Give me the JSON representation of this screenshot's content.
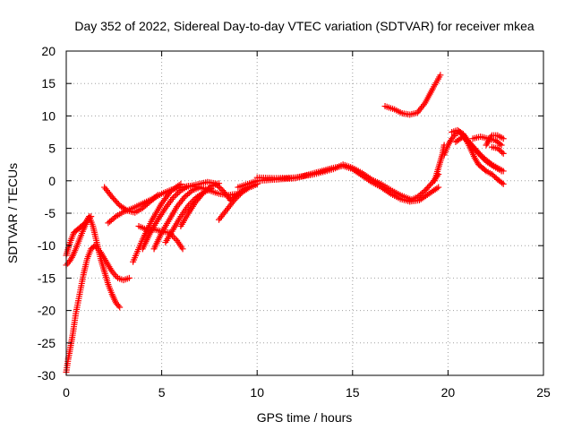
{
  "chart_data": {
    "type": "scatter",
    "title": "Day 352 of 2022, Sidereal Day-to-day VTEC variation (SDTVAR) for receiver mkea",
    "xlabel": "GPS time / hours",
    "ylabel": "SDTVAR / TECUs",
    "xlim": [
      0,
      25
    ],
    "ylim": [
      -30,
      20
    ],
    "xticks": [
      0,
      5,
      10,
      15,
      20,
      25
    ],
    "yticks": [
      -30,
      -25,
      -20,
      -15,
      -10,
      -5,
      0,
      5,
      10,
      15,
      20
    ],
    "grid": true,
    "marker": "plus",
    "color": "#ff0000",
    "series": [
      {
        "name": "s1",
        "x": [
          0.0,
          0.2,
          0.4,
          0.6,
          0.8,
          1.0,
          1.2,
          1.4,
          1.6,
          1.8,
          2.0,
          2.2,
          2.4,
          2.6,
          2.8
        ],
        "y": [
          -11.5,
          -9.5,
          -8.0,
          -7.5,
          -7.0,
          -6.5,
          -5.5,
          -7.0,
          -9.5,
          -12.0,
          -14.0,
          -16.0,
          -17.5,
          -18.8,
          -19.5
        ]
      },
      {
        "name": "s2",
        "x": [
          0.0,
          0.15,
          0.3,
          0.5,
          0.7,
          0.9,
          1.1,
          1.3
        ],
        "y": [
          -13.0,
          -12.5,
          -11.8,
          -10.5,
          -9.0,
          -7.5,
          -6.2,
          -5.5
        ]
      },
      {
        "name": "s3",
        "x": [
          0.0,
          0.1,
          0.2,
          0.35,
          0.5,
          0.7,
          0.9,
          1.1,
          1.3,
          1.5,
          1.8,
          2.1,
          2.4,
          2.7,
          3.0,
          3.3
        ],
        "y": [
          -29.5,
          -27.5,
          -26.0,
          -23.5,
          -20.5,
          -17.5,
          -14.5,
          -12.0,
          -10.5,
          -10.0,
          -11.0,
          -12.5,
          -14.0,
          -15.0,
          -15.3,
          -15.0
        ]
      },
      {
        "name": "s4",
        "x": [
          2.0,
          2.4,
          2.8,
          3.2,
          3.6,
          4.0,
          4.4,
          4.8
        ],
        "y": [
          -1.0,
          -2.5,
          -3.8,
          -4.6,
          -4.9,
          -4.2,
          -3.2,
          -2.2
        ]
      },
      {
        "name": "s5",
        "x": [
          2.2,
          2.6,
          3.0,
          3.5,
          4.0,
          4.5,
          5.0,
          5.5,
          6.0,
          6.5,
          7.0,
          7.5,
          8.0,
          8.5,
          9.0
        ],
        "y": [
          -6.5,
          -5.5,
          -4.8,
          -4.2,
          -3.5,
          -2.8,
          -2.0,
          -1.4,
          -1.0,
          -0.8,
          -1.0,
          -1.5,
          -2.0,
          -2.2,
          -2.0
        ]
      },
      {
        "name": "s6",
        "x": [
          3.5,
          4.0,
          4.5,
          5.0,
          5.5,
          6.0
        ],
        "y": [
          -12.5,
          -9.0,
          -6.0,
          -3.5,
          -1.5,
          -0.5
        ]
      },
      {
        "name": "s7",
        "x": [
          4.0,
          4.4,
          4.8,
          5.2,
          5.6,
          6.0,
          6.4
        ],
        "y": [
          -10.5,
          -8.0,
          -6.0,
          -4.2,
          -2.6,
          -1.5,
          -0.8
        ]
      },
      {
        "name": "s8",
        "x": [
          3.8,
          4.2,
          4.6,
          5.0,
          5.4,
          5.8,
          6.1
        ],
        "y": [
          -7.0,
          -7.5,
          -7.5,
          -7.8,
          -8.0,
          -9.2,
          -10.5
        ]
      },
      {
        "name": "s9",
        "x": [
          4.6,
          5.0,
          5.4,
          5.8,
          6.2,
          6.6,
          7.0
        ],
        "y": [
          -10.5,
          -8.0,
          -6.0,
          -4.0,
          -2.5,
          -1.5,
          -1.0
        ]
      },
      {
        "name": "s10",
        "x": [
          5.2,
          5.6,
          6.0,
          6.4,
          6.8,
          7.2,
          7.6
        ],
        "y": [
          -9.5,
          -7.5,
          -5.5,
          -3.8,
          -2.6,
          -1.8,
          -1.2
        ]
      },
      {
        "name": "s11",
        "x": [
          6.0,
          6.4,
          6.8,
          7.2,
          7.6,
          8.0
        ],
        "y": [
          -7.0,
          -5.0,
          -3.2,
          -1.8,
          -0.8,
          -0.4
        ]
      },
      {
        "name": "s12",
        "x": [
          8.0,
          8.4,
          8.8,
          9.2,
          9.6,
          10.0
        ],
        "y": [
          -6.0,
          -4.5,
          -3.0,
          -1.8,
          -1.0,
          -0.5
        ]
      },
      {
        "name": "s13",
        "x": [
          6.2,
          6.8,
          7.4,
          7.8,
          8.2,
          8.6
        ],
        "y": [
          -1.0,
          -0.6,
          -0.2,
          -0.4,
          -1.5,
          -3.0
        ]
      },
      {
        "name": "s14",
        "x": [
          8.6,
          9.0,
          9.4,
          9.8,
          10.0
        ],
        "y": [
          -3.0,
          -2.0,
          -1.2,
          -0.8,
          -0.5
        ]
      },
      {
        "name": "s15",
        "x": [
          9.0,
          9.5,
          10.0,
          10.5,
          11.0,
          11.5,
          12.0,
          12.5,
          13.0,
          13.5,
          14.0,
          14.5,
          15.0,
          15.5,
          16.0,
          16.5,
          17.0,
          17.5,
          18.0,
          18.5,
          19.0,
          19.5
        ],
        "y": [
          -1.0,
          -0.5,
          0.0,
          0.1,
          0.2,
          0.3,
          0.4,
          0.8,
          1.2,
          1.6,
          2.0,
          2.3,
          1.8,
          0.8,
          -0.2,
          -1.0,
          -2.0,
          -2.8,
          -3.2,
          -3.0,
          -2.0,
          -1.0
        ]
      },
      {
        "name": "s16",
        "x": [
          10.0,
          11.0,
          12.0,
          13.0,
          14.0,
          14.5,
          15.0,
          15.5,
          16.0,
          16.5,
          17.0,
          17.5,
          18.0
        ],
        "y": [
          0.5,
          0.4,
          0.5,
          1.0,
          1.8,
          2.5,
          2.0,
          1.2,
          0.2,
          -0.5,
          -1.4,
          -2.2,
          -2.8
        ]
      },
      {
        "name": "s17",
        "x": [
          18.0,
          18.4,
          18.8,
          19.2,
          19.5
        ],
        "y": [
          -3.0,
          -2.5,
          -1.5,
          -0.2,
          1.0
        ]
      },
      {
        "name": "s18",
        "x": [
          19.3,
          19.5,
          19.7,
          19.8
        ],
        "y": [
          0.0,
          2.0,
          4.0,
          5.5
        ]
      },
      {
        "name": "s19",
        "x": [
          16.7,
          17.2,
          17.6,
          18.0,
          18.4,
          18.8,
          19.2,
          19.6
        ],
        "y": [
          11.5,
          11.0,
          10.4,
          10.2,
          10.5,
          12.0,
          14.2,
          16.3
        ]
      },
      {
        "name": "s20",
        "x": [
          19.8,
          20.0,
          20.2,
          20.4,
          20.6,
          20.8,
          21.0,
          21.2,
          21.4,
          21.6,
          21.8,
          22.0,
          22.3,
          22.6,
          22.9
        ],
        "y": [
          4.0,
          5.5,
          6.5,
          7.2,
          7.5,
          7.0,
          6.0,
          4.8,
          3.5,
          2.5,
          2.0,
          1.5,
          1.0,
          0.2,
          -0.5
        ]
      },
      {
        "name": "s21",
        "x": [
          20.2,
          20.5,
          20.8,
          21.1,
          21.4,
          21.7,
          22.0,
          22.3,
          22.6,
          22.9
        ],
        "y": [
          7.5,
          7.8,
          7.2,
          6.0,
          5.0,
          4.0,
          3.2,
          2.5,
          2.0,
          1.5
        ]
      },
      {
        "name": "s22",
        "x": [
          20.4,
          20.8,
          21.2,
          21.6,
          22.0,
          22.4,
          22.8
        ],
        "y": [
          6.0,
          6.8,
          5.5,
          4.2,
          3.0,
          2.2,
          1.5
        ]
      },
      {
        "name": "s23",
        "x": [
          21.3,
          21.7,
          22.1,
          22.5,
          22.8
        ],
        "y": [
          6.5,
          6.8,
          6.5,
          6.2,
          5.5
        ]
      },
      {
        "name": "s24",
        "x": [
          22.0,
          22.3,
          22.6,
          22.9
        ],
        "y": [
          5.5,
          7.0,
          7.0,
          6.5
        ]
      },
      {
        "name": "s25",
        "x": [
          22.3,
          22.6,
          22.9
        ],
        "y": [
          5.2,
          5.0,
          4.2
        ]
      }
    ]
  }
}
